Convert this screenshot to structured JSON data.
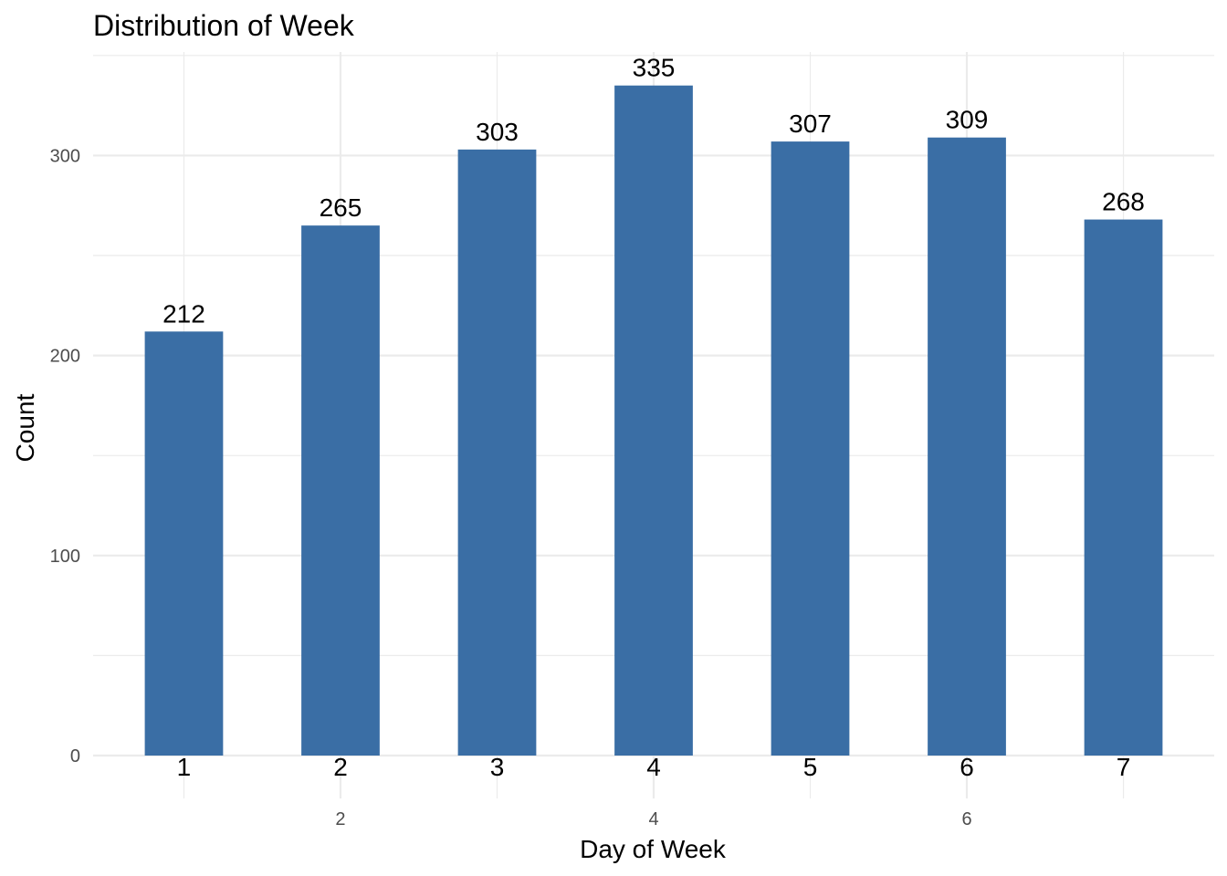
{
  "chart_data": {
    "type": "bar",
    "title": "Distribution of Week",
    "xlabel": "Day of Week",
    "ylabel": "Count",
    "categories": [
      1,
      2,
      3,
      4,
      5,
      6,
      7
    ],
    "values": [
      212,
      265,
      303,
      335,
      307,
      309,
      268
    ],
    "data_labels": [
      "212",
      "265",
      "303",
      "335",
      "307",
      "309",
      "268"
    ],
    "category_labels": [
      "1",
      "2",
      "3",
      "4",
      "5",
      "6",
      "7"
    ],
    "x_ticks": [
      2,
      4,
      6
    ],
    "x_tick_labels": [
      "2",
      "4",
      "6"
    ],
    "xlim": [
      0.42,
      7.58
    ],
    "y_ticks": [
      0,
      100,
      200,
      300
    ],
    "y_tick_labels": [
      "0",
      "100",
      "200",
      "300"
    ],
    "ylim": [
      0,
      351.75
    ],
    "grid": true,
    "legend": "none",
    "colors": {
      "bar": "#3a6ea5",
      "grid": "#ebebeb",
      "background": "#ffffff"
    }
  }
}
